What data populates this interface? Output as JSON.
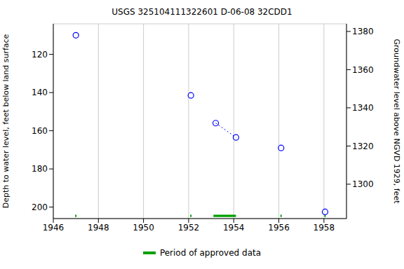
{
  "chart_data": {
    "type": "scatter",
    "title": "USGS 325104111322601 D-06-08 32CDD1",
    "x_label": null,
    "y_label": "Depth to water level, feet below land surface",
    "y2_label": "Groundwater level above NGVD 1929, feet",
    "x": [
      1947.0,
      1952.1,
      1953.2,
      1954.1,
      1956.1,
      1958.05
    ],
    "series": [
      {
        "type": "scatter",
        "marker": "circle",
        "color": "#0000ff",
        "values": [
          110,
          141.5,
          156,
          163.5,
          169,
          202.5
        ]
      },
      {
        "type": "line",
        "line_style": "dotted",
        "color": "#0000ff",
        "values": [
          null,
          null,
          156,
          163.5,
          null,
          null
        ]
      }
    ],
    "xlim": [
      1946,
      1959
    ],
    "xticks": [
      1946,
      1948,
      1950,
      1952,
      1954,
      1956,
      1958
    ],
    "ylim": [
      104,
      206
    ],
    "yticks": [
      120,
      140,
      160,
      180,
      200
    ],
    "y2lim": [
      1282,
      1384
    ],
    "y2ticks": [
      1300,
      1320,
      1340,
      1360,
      1380
    ],
    "approved_periods": {
      "name": "Period of approved data",
      "color": "#00a000",
      "periods": [
        [
          1947.0,
          1947.0
        ],
        [
          1952.1,
          1952.1
        ],
        [
          1953.1,
          1954.1
        ],
        [
          1956.1,
          1956.1
        ],
        [
          1958.05,
          1958.05
        ]
      ]
    },
    "grid": true,
    "legend": "bottom"
  }
}
